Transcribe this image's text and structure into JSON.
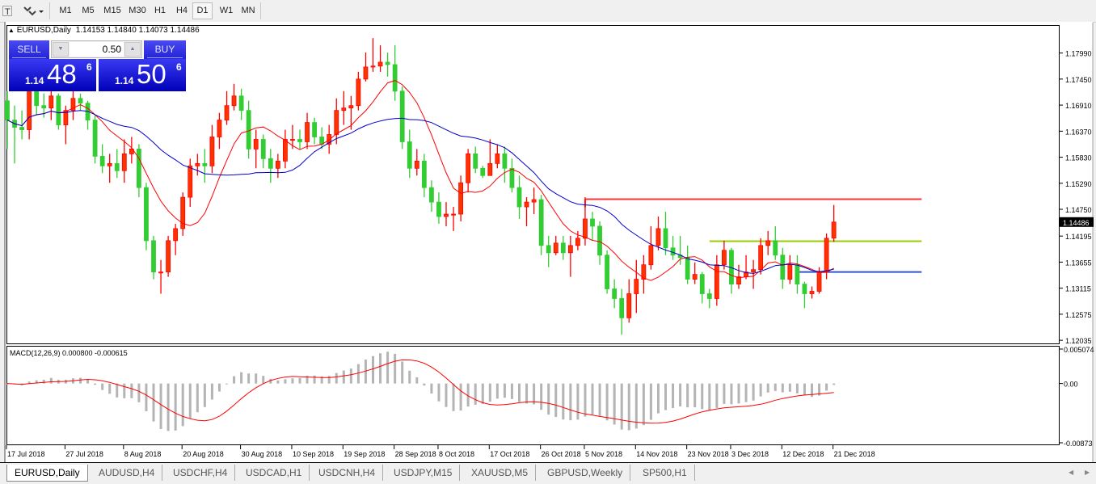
{
  "toolbar": {
    "timeframes": [
      "M1",
      "M5",
      "M15",
      "M30",
      "H1",
      "H4",
      "D1",
      "W1",
      "MN"
    ],
    "active_timeframe": "D1"
  },
  "header": {
    "symbol": "EURUSD,Daily",
    "ohlc": "1.14153 1.14840 1.14073 1.14486"
  },
  "trade_panel": {
    "sell_label": "SELL",
    "buy_label": "BUY",
    "lot": "0.50",
    "sell_prefix": "1.14",
    "sell_big": "48",
    "sell_sup": "6",
    "buy_prefix": "1.14",
    "buy_big": "50",
    "buy_sup": "6"
  },
  "tabs": [
    "EURUSD,Daily",
    "AUDUSD,H4",
    "USDCHF,H4",
    "USDCAD,H1",
    "USDCNH,H4",
    "USDJPY,M15",
    "XAUUSD,M5",
    "GBPUSD,Weekly",
    "SP500,H1"
  ],
  "active_tab": "EURUSD,Daily",
  "colors": {
    "up": "#ff0000",
    "up_body": "#ff3300",
    "down": "#32cd32",
    "ma_fast": "#ff0000",
    "ma_slow": "#0000cc",
    "macd_hist": "#b4b4b4",
    "macd_signal": "#ff0000",
    "bid_box": "#000000"
  },
  "chart_data": {
    "type": "candlestick",
    "price_axis": {
      "ticks": [
        "1.17990",
        "1.17450",
        "1.16910",
        "1.16370",
        "1.15830",
        "1.15290",
        "1.14750",
        "1.14195",
        "1.13655",
        "1.13115",
        "1.12575",
        "1.12035"
      ],
      "range": [
        1.1197,
        1.1857
      ],
      "current_price": "1.14486"
    },
    "date_ticks": [
      {
        "label": "17 Jul 2018",
        "bar": 0
      },
      {
        "label": "27 Jul 2018",
        "bar": 8
      },
      {
        "label": "8 Aug 2018",
        "bar": 16
      },
      {
        "label": "20 Aug 2018",
        "bar": 24
      },
      {
        "label": "30 Aug 2018",
        "bar": 32
      },
      {
        "label": "10 Sep 2018",
        "bar": 39
      },
      {
        "label": "19 Sep 2018",
        "bar": 46
      },
      {
        "label": "28 Sep 2018",
        "bar": 53
      },
      {
        "label": "8 Oct 2018",
        "bar": 59
      },
      {
        "label": "17 Oct 2018",
        "bar": 66
      },
      {
        "label": "26 Oct 2018",
        "bar": 73
      },
      {
        "label": "5 Nov 2018",
        "bar": 79
      },
      {
        "label": "14 Nov 2018",
        "bar": 86
      },
      {
        "label": "23 Nov 2018",
        "bar": 93
      },
      {
        "label": "3 Dec 2018",
        "bar": 99
      },
      {
        "label": "12 Dec 2018",
        "bar": 106
      },
      {
        "label": "21 Dec 2018",
        "bar": 113
      }
    ],
    "candles_ohlc": [
      [
        1.17,
        1.172,
        1.16,
        1.166
      ],
      [
        1.166,
        1.169,
        1.157,
        1.1645
      ],
      [
        1.1645,
        1.168,
        1.162,
        1.164
      ],
      [
        1.164,
        1.1735,
        1.162,
        1.172
      ],
      [
        1.172,
        1.173,
        1.167,
        1.169
      ],
      [
        1.169,
        1.1715,
        1.1665,
        1.1685
      ],
      [
        1.1685,
        1.1735,
        1.166,
        1.171
      ],
      [
        1.171,
        1.1715,
        1.164,
        1.165
      ],
      [
        1.165,
        1.169,
        1.161,
        1.168
      ],
      [
        1.168,
        1.172,
        1.166,
        1.1705
      ],
      [
        1.1705,
        1.1715,
        1.168,
        1.1695
      ],
      [
        1.1695,
        1.17,
        1.164,
        1.166
      ],
      [
        1.166,
        1.167,
        1.157,
        1.1585
      ],
      [
        1.1585,
        1.161,
        1.155,
        1.1565
      ],
      [
        1.1565,
        1.159,
        1.153,
        1.157
      ],
      [
        1.157,
        1.16,
        1.154,
        1.1555
      ],
      [
        1.1555,
        1.162,
        1.153,
        1.159
      ],
      [
        1.159,
        1.1625,
        1.157,
        1.16
      ],
      [
        1.16,
        1.161,
        1.15,
        1.152
      ],
      [
        1.152,
        1.153,
        1.139,
        1.141
      ],
      [
        1.141,
        1.142,
        1.133,
        1.1345
      ],
      [
        1.1345,
        1.137,
        1.13,
        1.1345
      ],
      [
        1.1345,
        1.142,
        1.1335,
        1.141
      ],
      [
        1.141,
        1.1445,
        1.138,
        1.1435
      ],
      [
        1.1435,
        1.151,
        1.142,
        1.15
      ],
      [
        1.15,
        1.158,
        1.148,
        1.1565
      ],
      [
        1.1565,
        1.159,
        1.1545,
        1.157
      ],
      [
        1.157,
        1.16,
        1.153,
        1.1565
      ],
      [
        1.1565,
        1.165,
        1.155,
        1.1625
      ],
      [
        1.1625,
        1.1675,
        1.16,
        1.166
      ],
      [
        1.166,
        1.172,
        1.165,
        1.169
      ],
      [
        1.169,
        1.1735,
        1.168,
        1.171
      ],
      [
        1.171,
        1.1725,
        1.166,
        1.168
      ],
      [
        1.168,
        1.17,
        1.158,
        1.16
      ],
      [
        1.16,
        1.164,
        1.156,
        1.162
      ],
      [
        1.162,
        1.163,
        1.156,
        1.158
      ],
      [
        1.158,
        1.16,
        1.153,
        1.156
      ],
      [
        1.156,
        1.159,
        1.154,
        1.1575
      ],
      [
        1.1575,
        1.164,
        1.156,
        1.162
      ],
      [
        1.162,
        1.165,
        1.16,
        1.162
      ],
      [
        1.162,
        1.164,
        1.16,
        1.1615
      ],
      [
        1.1615,
        1.1675,
        1.16,
        1.1655
      ],
      [
        1.1655,
        1.1665,
        1.161,
        1.1625
      ],
      [
        1.1625,
        1.1645,
        1.16,
        1.161
      ],
      [
        1.161,
        1.165,
        1.159,
        1.163
      ],
      [
        1.163,
        1.1705,
        1.161,
        1.168
      ],
      [
        1.168,
        1.172,
        1.165,
        1.1685
      ],
      [
        1.1685,
        1.171,
        1.164,
        1.169
      ],
      [
        1.169,
        1.176,
        1.168,
        1.1745
      ],
      [
        1.1745,
        1.18,
        1.174,
        1.177
      ],
      [
        1.177,
        1.183,
        1.176,
        1.1772
      ],
      [
        1.1772,
        1.1815,
        1.176,
        1.178
      ],
      [
        1.178,
        1.18,
        1.175,
        1.1775
      ],
      [
        1.1775,
        1.1815,
        1.17,
        1.172
      ],
      [
        1.172,
        1.173,
        1.16,
        1.1615
      ],
      [
        1.1615,
        1.164,
        1.154,
        1.156
      ],
      [
        1.156,
        1.16,
        1.1545,
        1.1575
      ],
      [
        1.1575,
        1.159,
        1.15,
        1.152
      ],
      [
        1.152,
        1.1535,
        1.147,
        1.149
      ],
      [
        1.149,
        1.151,
        1.1445,
        1.146
      ],
      [
        1.146,
        1.149,
        1.144,
        1.1465
      ],
      [
        1.1465,
        1.148,
        1.143,
        1.1465
      ],
      [
        1.1465,
        1.1545,
        1.145,
        1.153
      ],
      [
        1.153,
        1.16,
        1.151,
        1.159
      ],
      [
        1.159,
        1.1605,
        1.155,
        1.156
      ],
      [
        1.156,
        1.1565,
        1.154,
        1.1545
      ],
      [
        1.1545,
        1.162,
        1.1545,
        1.157
      ],
      [
        1.157,
        1.161,
        1.156,
        1.159
      ],
      [
        1.159,
        1.1605,
        1.153,
        1.156
      ],
      [
        1.156,
        1.158,
        1.151,
        1.152
      ],
      [
        1.152,
        1.1545,
        1.1455,
        1.148
      ],
      [
        1.148,
        1.15,
        1.144,
        1.149
      ],
      [
        1.149,
        1.152,
        1.1465,
        1.1495
      ],
      [
        1.1495,
        1.1505,
        1.138,
        1.14
      ],
      [
        1.14,
        1.142,
        1.1355,
        1.1385
      ],
      [
        1.1385,
        1.142,
        1.138,
        1.1405
      ],
      [
        1.1405,
        1.142,
        1.137,
        1.1385
      ],
      [
        1.1385,
        1.142,
        1.1335,
        1.14
      ],
      [
        1.14,
        1.143,
        1.139,
        1.1415
      ],
      [
        1.1415,
        1.15,
        1.14,
        1.1455
      ],
      [
        1.1455,
        1.147,
        1.141,
        1.144
      ],
      [
        1.144,
        1.145,
        1.136,
        1.138
      ],
      [
        1.138,
        1.139,
        1.13,
        1.131
      ],
      [
        1.131,
        1.133,
        1.127,
        1.129
      ],
      [
        1.129,
        1.131,
        1.1215,
        1.125
      ],
      [
        1.125,
        1.133,
        1.124,
        1.13
      ],
      [
        1.13,
        1.137,
        1.126,
        1.133
      ],
      [
        1.133,
        1.138,
        1.13,
        1.136
      ],
      [
        1.136,
        1.144,
        1.135,
        1.14
      ],
      [
        1.14,
        1.146,
        1.139,
        1.1435
      ],
      [
        1.1435,
        1.147,
        1.138,
        1.1395
      ],
      [
        1.1395,
        1.142,
        1.137,
        1.138
      ],
      [
        1.138,
        1.142,
        1.136,
        1.1375
      ],
      [
        1.1375,
        1.14,
        1.132,
        1.133
      ],
      [
        1.133,
        1.1365,
        1.132,
        1.134
      ],
      [
        1.134,
        1.1345,
        1.128,
        1.13
      ],
      [
        1.13,
        1.131,
        1.127,
        1.129
      ],
      [
        1.129,
        1.138,
        1.1275,
        1.136
      ],
      [
        1.136,
        1.141,
        1.135,
        1.139
      ],
      [
        1.139,
        1.1395,
        1.13,
        1.132
      ],
      [
        1.132,
        1.136,
        1.131,
        1.1335
      ],
      [
        1.1335,
        1.138,
        1.133,
        1.1345
      ],
      [
        1.1345,
        1.137,
        1.131,
        1.135
      ],
      [
        1.135,
        1.1415,
        1.134,
        1.14
      ],
      [
        1.14,
        1.143,
        1.138,
        1.141
      ],
      [
        1.141,
        1.144,
        1.137,
        1.138
      ],
      [
        1.138,
        1.1395,
        1.131,
        1.133
      ],
      [
        1.133,
        1.138,
        1.132,
        1.136
      ],
      [
        1.136,
        1.138,
        1.13,
        1.132
      ],
      [
        1.132,
        1.1325,
        1.127,
        1.13
      ],
      [
        1.13,
        1.1315,
        1.129,
        1.1305
      ],
      [
        1.1305,
        1.1355,
        1.13,
        1.1345
      ],
      [
        1.1345,
        1.1425,
        1.133,
        1.1415
      ],
      [
        1.14153,
        1.1484,
        1.14073,
        1.14486
      ]
    ],
    "moving_averages": [
      {
        "period": 8,
        "color": "#ff0000"
      },
      {
        "period": 21,
        "color": "#0000cc"
      }
    ],
    "levels": [
      {
        "price": 1.1496,
        "color": "#ff3333",
        "start_bar": 79,
        "end_bar": 125
      },
      {
        "price": 1.1409,
        "color": "#9acd00",
        "start_bar": 96,
        "end_bar": 125
      },
      {
        "price": 1.1345,
        "color": "#3355cc",
        "start_bar": 108,
        "end_bar": 125
      }
    ],
    "macd": {
      "label": "MACD(12,26,9) 0.000800 -0.000615",
      "params": [
        12,
        26,
        9
      ],
      "ticks": [
        "0.005074",
        "0.00",
        "-0.00873"
      ],
      "range": [
        -0.00873,
        0.005074
      ]
    }
  }
}
